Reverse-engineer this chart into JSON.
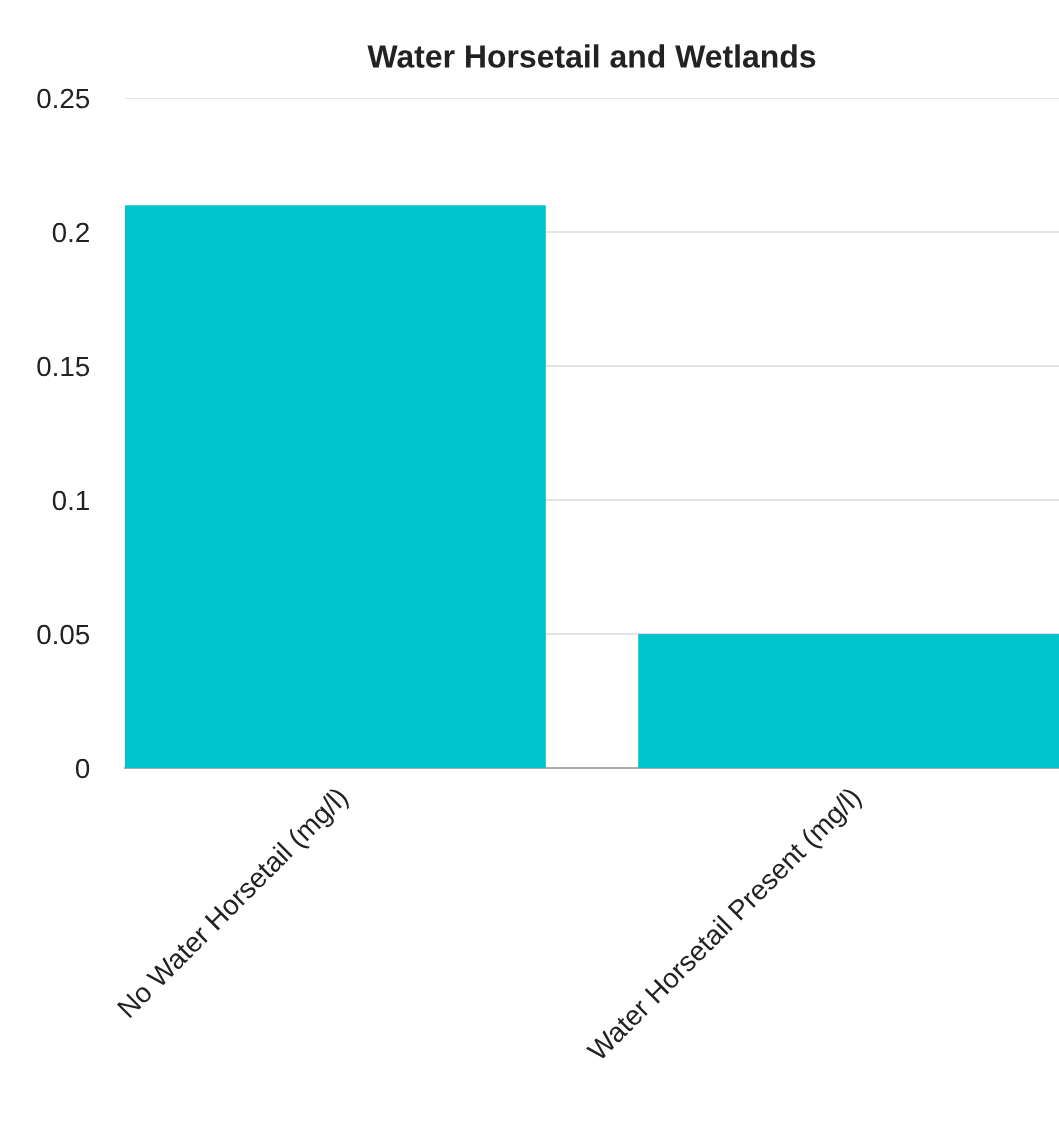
{
  "chart_data": {
    "type": "bar",
    "title": "Water Horsetail and Wetlands",
    "categories": [
      "No Water Horsetail (mg/l)",
      "Water Horsetail Present (mg/l)"
    ],
    "values": [
      0.21,
      0.05
    ],
    "color": "#00c4cc",
    "ylim": [
      0,
      0.25
    ],
    "yticks": [
      0,
      0.05,
      0.1,
      0.15,
      0.2,
      0.25
    ],
    "grid": "y",
    "legend": false
  }
}
